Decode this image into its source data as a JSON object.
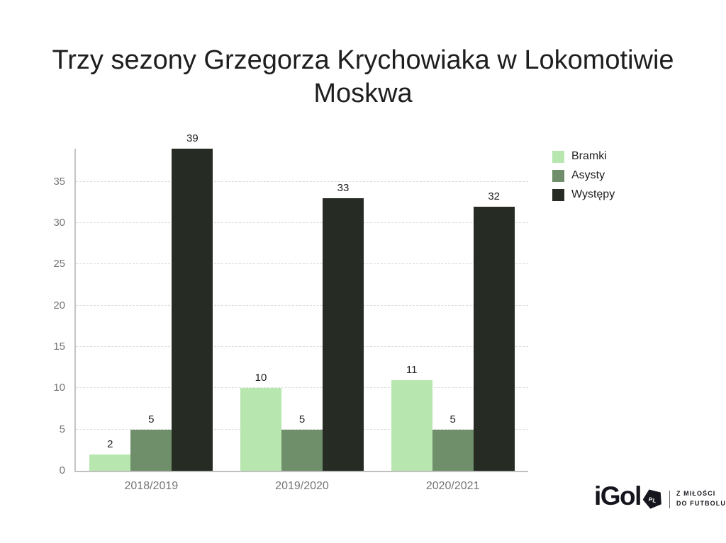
{
  "title": "Trzy sezony Grzegorza Krychowiaka w Lokomotiwie Moskwa",
  "chart_data": {
    "type": "bar",
    "title": "Trzy sezony Grzegorza Krychowiaka w Lokomotiwie Moskwa",
    "categories": [
      "2018/2019",
      "2019/2020",
      "2020/2021"
    ],
    "series": [
      {
        "name": "Bramki",
        "color": "#b7e6ae",
        "values": [
          2,
          10,
          11
        ]
      },
      {
        "name": "Asysty",
        "color": "#6f8f6a",
        "values": [
          5,
          5,
          5
        ]
      },
      {
        "name": "Występy",
        "color": "#262b24",
        "values": [
          39,
          33,
          32
        ]
      }
    ],
    "xlabel": "",
    "ylabel": "",
    "ylim": [
      0,
      39
    ],
    "yticks": [
      0,
      5,
      10,
      15,
      20,
      25,
      30,
      35
    ],
    "grid": "horizontal-dashed",
    "legend_position": "top-right",
    "bar_value_labels": true
  },
  "legend": {
    "items": [
      "Bramki",
      "Asysty",
      "Występy"
    ]
  },
  "logo": {
    "brand": "iGol",
    "badge": "PL",
    "tagline_line1": "Z MIŁOŚCI",
    "tagline_line2": "DO FUTBOLU"
  },
  "colors": {
    "background": "#ffffff",
    "title_text": "#1e1e1e",
    "tick_text": "#757575",
    "value_label_text": "#212121",
    "gridline": "#dcdcdc",
    "axis_line": "#c2c2c2",
    "series_bramki": "#b7e6ae",
    "series_asysty": "#6f8f6a",
    "series_wystepy": "#262b24",
    "logo_ink": "#15151d"
  }
}
